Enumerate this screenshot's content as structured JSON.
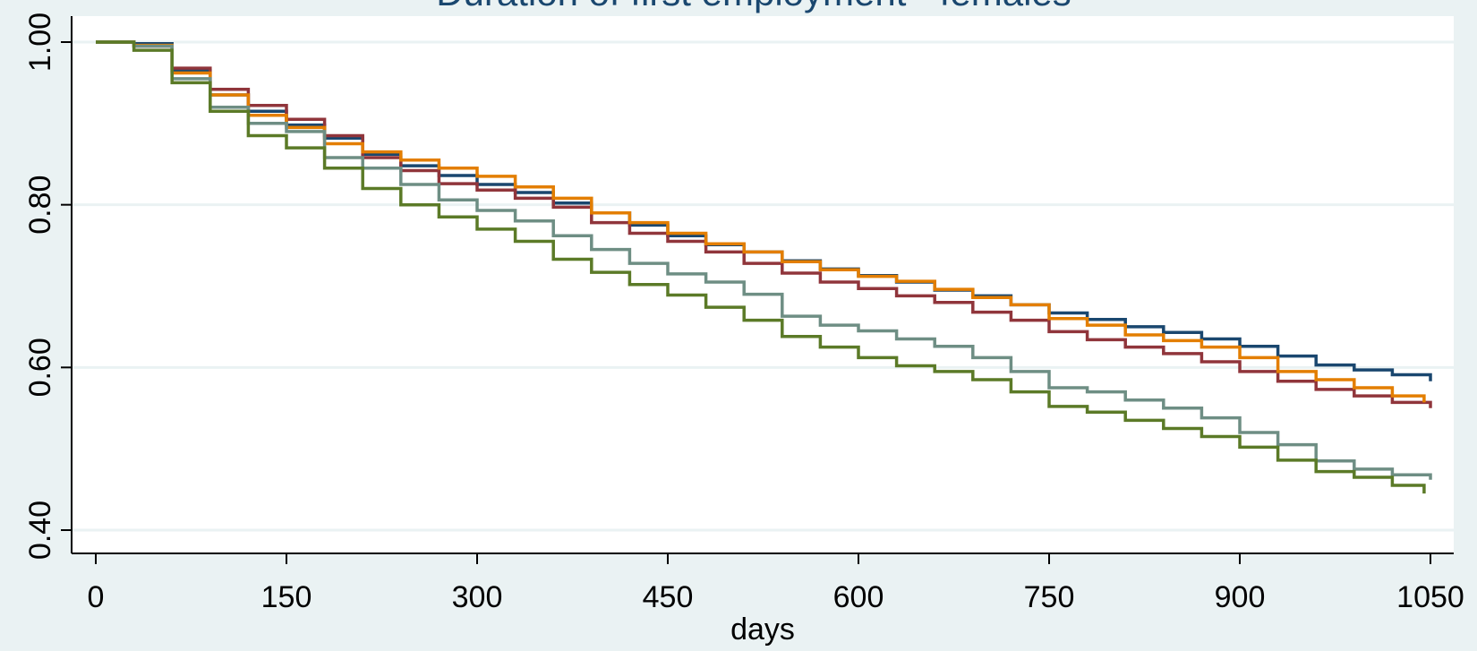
{
  "chart_data": {
    "type": "line",
    "title": "Duration of first employment - females",
    "xlabel": "days",
    "ylabel": "",
    "xlim": [
      0,
      1050
    ],
    "ylim": [
      0.4,
      1.0
    ],
    "xticks": [
      0,
      150,
      300,
      450,
      600,
      750,
      900,
      1050
    ],
    "xtick_labels": [
      "0",
      "150",
      "300",
      "450",
      "600",
      "750",
      "900",
      "1050"
    ],
    "yticks": [
      0.4,
      0.6,
      0.8,
      1.0
    ],
    "ytick_labels": [
      "0.40",
      "0.60",
      "0.80",
      "1.00"
    ],
    "grid": "horizontal",
    "legend": "none",
    "series": [
      {
        "color": "#1a476f",
        "x": [
          0,
          30,
          60,
          90,
          120,
          150,
          180,
          210,
          240,
          270,
          300,
          330,
          360,
          390,
          420,
          450,
          480,
          510,
          540,
          570,
          600,
          630,
          660,
          690,
          720,
          750,
          780,
          810,
          840,
          870,
          900,
          930,
          960,
          990,
          1020,
          1050
        ],
        "y": [
          1.0,
          0.998,
          0.965,
          0.935,
          0.915,
          0.898,
          0.882,
          0.862,
          0.848,
          0.836,
          0.825,
          0.815,
          0.802,
          0.79,
          0.775,
          0.762,
          0.751,
          0.742,
          0.731,
          0.721,
          0.713,
          0.705,
          0.695,
          0.688,
          0.677,
          0.667,
          0.659,
          0.65,
          0.643,
          0.635,
          0.626,
          0.614,
          0.603,
          0.597,
          0.591,
          0.583
        ]
      },
      {
        "color": "#90353b",
        "x": [
          0,
          30,
          60,
          90,
          120,
          150,
          180,
          210,
          240,
          270,
          300,
          330,
          360,
          390,
          420,
          450,
          480,
          510,
          540,
          570,
          600,
          630,
          660,
          690,
          720,
          750,
          780,
          810,
          840,
          870,
          900,
          930,
          960,
          990,
          1020,
          1050
        ],
        "y": [
          1.0,
          0.995,
          0.968,
          0.942,
          0.922,
          0.905,
          0.885,
          0.858,
          0.842,
          0.826,
          0.818,
          0.808,
          0.797,
          0.778,
          0.765,
          0.755,
          0.742,
          0.728,
          0.716,
          0.705,
          0.697,
          0.688,
          0.68,
          0.668,
          0.658,
          0.644,
          0.634,
          0.625,
          0.617,
          0.607,
          0.595,
          0.583,
          0.573,
          0.565,
          0.557,
          0.55
        ]
      },
      {
        "color": "#e37e00",
        "x": [
          0,
          30,
          60,
          90,
          120,
          150,
          180,
          210,
          240,
          270,
          300,
          330,
          360,
          390,
          420,
          450,
          480,
          510,
          540,
          570,
          600,
          630,
          660,
          690,
          720,
          750,
          780,
          810,
          840,
          870,
          900,
          930,
          960,
          990,
          1020,
          1045
        ],
        "y": [
          1.0,
          0.996,
          0.962,
          0.935,
          0.91,
          0.895,
          0.875,
          0.865,
          0.855,
          0.845,
          0.835,
          0.822,
          0.808,
          0.79,
          0.778,
          0.765,
          0.752,
          0.742,
          0.73,
          0.72,
          0.712,
          0.706,
          0.696,
          0.686,
          0.677,
          0.66,
          0.652,
          0.64,
          0.633,
          0.625,
          0.612,
          0.595,
          0.585,
          0.575,
          0.565,
          0.557
        ]
      },
      {
        "color": "#6e8e84",
        "x": [
          0,
          30,
          60,
          90,
          120,
          150,
          180,
          210,
          240,
          270,
          300,
          330,
          360,
          390,
          420,
          450,
          480,
          510,
          540,
          570,
          600,
          630,
          660,
          690,
          720,
          750,
          780,
          810,
          840,
          870,
          900,
          930,
          960,
          990,
          1020,
          1050
        ],
        "y": [
          1.0,
          0.995,
          0.955,
          0.92,
          0.9,
          0.89,
          0.858,
          0.845,
          0.825,
          0.806,
          0.793,
          0.78,
          0.762,
          0.745,
          0.728,
          0.715,
          0.705,
          0.69,
          0.663,
          0.652,
          0.645,
          0.635,
          0.626,
          0.612,
          0.595,
          0.575,
          0.57,
          0.56,
          0.55,
          0.538,
          0.52,
          0.505,
          0.485,
          0.475,
          0.468,
          0.462
        ]
      },
      {
        "color": "#5b7a27",
        "x": [
          0,
          30,
          60,
          90,
          120,
          150,
          180,
          210,
          240,
          270,
          300,
          330,
          360,
          390,
          420,
          450,
          480,
          510,
          540,
          570,
          600,
          630,
          660,
          690,
          720,
          750,
          780,
          810,
          840,
          870,
          900,
          930,
          960,
          990,
          1020,
          1045
        ],
        "y": [
          1.0,
          0.99,
          0.95,
          0.915,
          0.885,
          0.87,
          0.845,
          0.82,
          0.8,
          0.785,
          0.77,
          0.755,
          0.733,
          0.717,
          0.702,
          0.689,
          0.674,
          0.658,
          0.638,
          0.625,
          0.612,
          0.602,
          0.595,
          0.585,
          0.57,
          0.552,
          0.545,
          0.535,
          0.525,
          0.515,
          0.502,
          0.486,
          0.472,
          0.465,
          0.455,
          0.445
        ]
      }
    ]
  }
}
